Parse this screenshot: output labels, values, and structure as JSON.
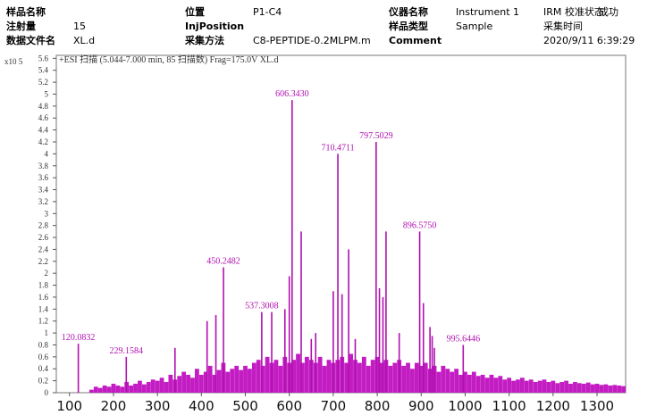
{
  "header": {
    "fields": [
      {
        "label": "样品名称"
      },
      {
        "label": "位置",
        "value": "P1-C4"
      },
      {
        "label": "仪器名称",
        "value": "Instrument 1"
      },
      {
        "label": "IRM 校准状态",
        "value": "成功"
      },
      {
        "label": "注射量",
        "value": "15"
      },
      {
        "label": "InjPosition"
      },
      {
        "label": "样品类型",
        "value": "Sample"
      },
      {
        "label": "采集时间"
      },
      {
        "label": "数据文件名",
        "value": "XL.d"
      },
      {
        "label": "采集方法",
        "value": "C8-PEPTIDE-0.2MLPM.m"
      },
      {
        "label": "Comment"
      },
      {
        "label": "2020/9/11 6:39:29"
      }
    ]
  },
  "chart_data": {
    "type": "spectrum",
    "title": "+ESI 扫描 (5.044-7.000 min, 85 扫描数) Frag=175.0V XL.d",
    "y_multiplier": "x10 5",
    "xlim": [
      70,
      1365
    ],
    "ylim": [
      0,
      5.65
    ],
    "xticks": [
      100,
      200,
      300,
      400,
      500,
      600,
      700,
      800,
      900,
      1000,
      1100,
      1200,
      1300
    ],
    "yticks": [
      0,
      0.2,
      0.4,
      0.6,
      0.8,
      1,
      1.2,
      1.4,
      1.6,
      1.8,
      2,
      2.2,
      2.4,
      2.6,
      2.8,
      3,
      3.2,
      3.4,
      3.6,
      3.8,
      4,
      4.2,
      4.4,
      4.6,
      4.8,
      5,
      5.2,
      5.4,
      5.6
    ],
    "series": [
      {
        "color": "#c21cc2",
        "kind": "noise",
        "x": [
          150,
          160,
          170,
          180,
          190,
          200,
          210,
          220,
          230,
          240,
          250,
          260,
          270,
          280,
          290,
          300,
          310,
          320,
          330,
          340,
          350,
          360,
          370,
          380,
          390,
          400,
          410,
          420,
          430,
          440,
          450,
          460,
          470,
          480,
          490,
          500,
          510,
          520,
          530,
          540,
          550,
          560,
          570,
          580,
          590,
          600,
          610,
          620,
          630,
          640,
          650,
          660,
          670,
          680,
          690,
          700,
          710,
          720,
          730,
          740,
          750,
          760,
          770,
          780,
          790,
          800,
          810,
          820,
          830,
          840,
          850,
          860,
          870,
          880,
          890,
          900,
          910,
          920,
          930,
          940,
          950,
          960,
          970,
          980,
          990,
          1000,
          1010,
          1020,
          1030,
          1040,
          1050,
          1060,
          1070,
          1080,
          1090,
          1100,
          1110,
          1120,
          1130,
          1140,
          1150,
          1160,
          1170,
          1180,
          1190,
          1200,
          1210,
          1220,
          1230,
          1240,
          1250,
          1260,
          1270,
          1280,
          1290,
          1300,
          1310,
          1320,
          1330,
          1340,
          1350,
          1360
        ],
        "values": [
          0.05,
          0.1,
          0.08,
          0.12,
          0.1,
          0.15,
          0.12,
          0.1,
          0.18,
          0.12,
          0.15,
          0.2,
          0.14,
          0.18,
          0.22,
          0.2,
          0.25,
          0.18,
          0.3,
          0.22,
          0.28,
          0.35,
          0.3,
          0.25,
          0.4,
          0.3,
          0.35,
          0.45,
          0.3,
          0.38,
          0.5,
          0.35,
          0.4,
          0.45,
          0.38,
          0.45,
          0.4,
          0.5,
          0.55,
          0.45,
          0.6,
          0.5,
          0.55,
          0.45,
          0.6,
          0.5,
          0.55,
          0.65,
          0.5,
          0.6,
          0.55,
          0.5,
          0.6,
          0.45,
          0.55,
          0.5,
          0.55,
          0.6,
          0.5,
          0.65,
          0.55,
          0.5,
          0.6,
          0.45,
          0.55,
          0.6,
          0.5,
          0.55,
          0.45,
          0.5,
          0.55,
          0.45,
          0.5,
          0.4,
          0.5,
          0.45,
          0.5,
          0.4,
          0.45,
          0.35,
          0.45,
          0.4,
          0.35,
          0.4,
          0.3,
          0.35,
          0.3,
          0.35,
          0.28,
          0.3,
          0.25,
          0.3,
          0.25,
          0.28,
          0.22,
          0.25,
          0.2,
          0.22,
          0.25,
          0.2,
          0.22,
          0.18,
          0.2,
          0.22,
          0.18,
          0.2,
          0.16,
          0.18,
          0.2,
          0.15,
          0.18,
          0.16,
          0.15,
          0.17,
          0.14,
          0.15,
          0.13,
          0.14,
          0.12,
          0.13,
          0.12,
          0.11
        ]
      },
      {
        "color": "#b010b0",
        "kind": "peaks",
        "x": [
          340,
          413,
          433,
          560,
          590,
          600,
          627,
          650,
          660,
          700,
          720,
          735,
          750,
          805,
          813,
          820,
          850,
          905,
          920,
          925,
          930
        ],
        "values": [
          0.75,
          1.2,
          1.3,
          1.35,
          1.4,
          1.95,
          2.7,
          0.9,
          1.0,
          1.7,
          1.65,
          2.4,
          0.9,
          1.75,
          1.6,
          2.7,
          1.0,
          1.5,
          1.1,
          0.95,
          0.75
        ]
      },
      {
        "color": "#b010b0",
        "kind": "labeled",
        "x": [
          120.0832,
          229.1584,
          450.2482,
          537.3008,
          606.343,
          710.4711,
          797.5029,
          896.575,
          995.6446
        ],
        "x_labels": [
          "120.0832",
          "229.1584",
          "450.2482",
          "537.3008",
          "606.3430",
          "710.4711",
          "797.5029",
          "896.5750",
          "995.6446"
        ],
        "values": [
          0.82,
          0.6,
          2.1,
          1.35,
          4.9,
          4.0,
          4.2,
          2.7,
          0.8
        ]
      }
    ]
  }
}
